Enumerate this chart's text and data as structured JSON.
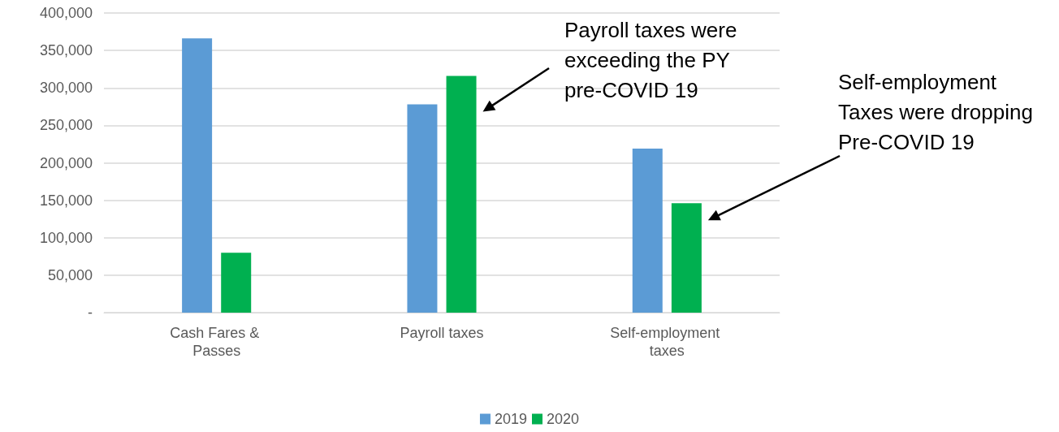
{
  "chart_data": {
    "type": "bar",
    "categories": [
      "Cash Fares & Passes",
      "Payroll taxes",
      "Self-employment taxes"
    ],
    "series": [
      {
        "name": "2019",
        "color": "#5b9bd5",
        "values": [
          366000,
          278000,
          219000
        ]
      },
      {
        "name": "2020",
        "color": "#00b050",
        "values": [
          80000,
          316000,
          146000
        ]
      }
    ],
    "ylim": [
      0,
      400000
    ],
    "yticks": [
      {
        "value": 0,
        "label": "-"
      },
      {
        "value": 50000,
        "label": "50,000"
      },
      {
        "value": 100000,
        "label": "100,000"
      },
      {
        "value": 150000,
        "label": "150,000"
      },
      {
        "value": 200000,
        "label": "200,000"
      },
      {
        "value": 250000,
        "label": "250,000"
      },
      {
        "value": 300000,
        "label": "300,000"
      },
      {
        "value": 350000,
        "label": "350,000"
      },
      {
        "value": 400000,
        "label": "400,000"
      }
    ],
    "grid": "y",
    "legend": "bottom",
    "annotations": [
      "Payroll taxes were exceeding the PY pre-COVID 19",
      "Self-employment Taxes were dropping Pre-COVID 19"
    ]
  }
}
